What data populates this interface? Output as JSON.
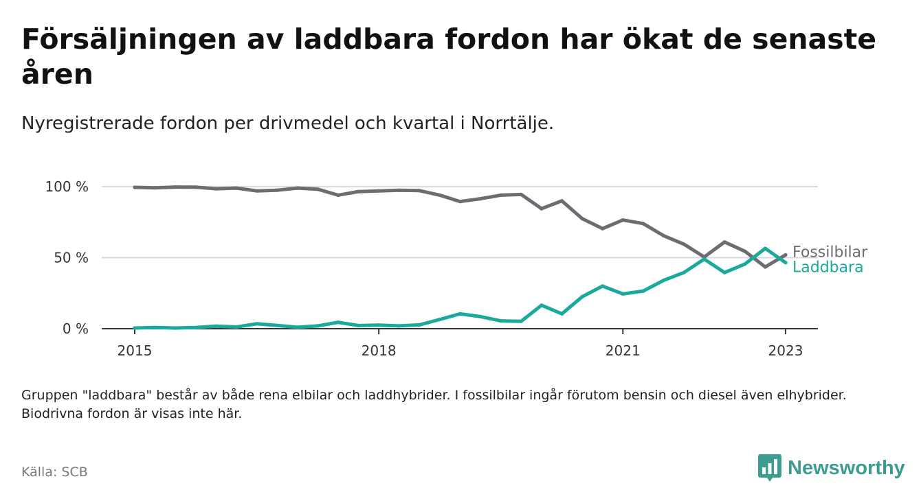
{
  "title": "Försäljningen av laddbara fordon har ökat de senaste åren",
  "subtitle": "Nyregistrerade fordon per drivmedel och kvartal i Norrtälje.",
  "note": "Gruppen \"laddbara\" består av både rena elbilar och laddhybrider. I fossilbilar ingår förutom bensin och diesel även elhybrider. Biodrivna fordon är visas inte här.",
  "source": "Källa: SCB",
  "brand": "Newsworthy",
  "colors": {
    "fossil": "#6d6c72",
    "laddbara": "#1aa99a",
    "grid": "#d9d9d9",
    "axis": "#333333",
    "brand": "#3b9c8f"
  },
  "chart_data": {
    "type": "line",
    "title": "Försäljningen av laddbara fordon har ökat de senaste åren",
    "xlabel": "",
    "ylabel": "",
    "x": [
      2015.0,
      2015.25,
      2015.5,
      2015.75,
      2016.0,
      2016.25,
      2016.5,
      2016.75,
      2017.0,
      2017.25,
      2017.5,
      2017.75,
      2018.0,
      2018.25,
      2018.5,
      2018.75,
      2019.0,
      2019.25,
      2019.5,
      2019.75,
      2020.0,
      2020.25,
      2020.5,
      2020.75,
      2021.0,
      2021.25,
      2021.5,
      2021.75,
      2022.0,
      2022.25,
      2022.5,
      2022.75,
      2023.0
    ],
    "xlim": [
      2014.6,
      2023.4
    ],
    "ylim": [
      0,
      100
    ],
    "grid": true,
    "x_ticks": [
      {
        "value": 2015,
        "label": "2015"
      },
      {
        "value": 2018,
        "label": "2018"
      },
      {
        "value": 2021,
        "label": "2021"
      },
      {
        "value": 2023,
        "label": "2023"
      }
    ],
    "y_ticks": [
      {
        "value": 0,
        "label": "0 %"
      },
      {
        "value": 50,
        "label": "50 %"
      },
      {
        "value": 100,
        "label": "100 %"
      }
    ],
    "series": [
      {
        "name": "Fossilbilar",
        "key": "fossil",
        "values": [
          99.5,
          99.2,
          99.7,
          99.6,
          98.5,
          99.0,
          97.0,
          97.5,
          99.0,
          98.2,
          94.0,
          96.5,
          97.0,
          97.5,
          97.2,
          94.0,
          89.5,
          91.5,
          94.0,
          94.5,
          84.5,
          90.0,
          77.5,
          70.5,
          76.5,
          74.0,
          65.5,
          59.5,
          50.5,
          61.0,
          54.5,
          43.5,
          52.0
        ]
      },
      {
        "name": "Laddbara",
        "key": "laddbara",
        "values": [
          0.5,
          0.8,
          0.5,
          0.8,
          1.8,
          1.2,
          3.5,
          2.3,
          1.0,
          2.0,
          4.5,
          2.2,
          2.5,
          2.0,
          2.7,
          6.5,
          10.5,
          8.5,
          5.5,
          5.2,
          16.5,
          10.5,
          22.5,
          30.0,
          24.5,
          26.5,
          34.0,
          39.5,
          49.0,
          39.5,
          45.5,
          56.5,
          46.5
        ]
      }
    ]
  }
}
